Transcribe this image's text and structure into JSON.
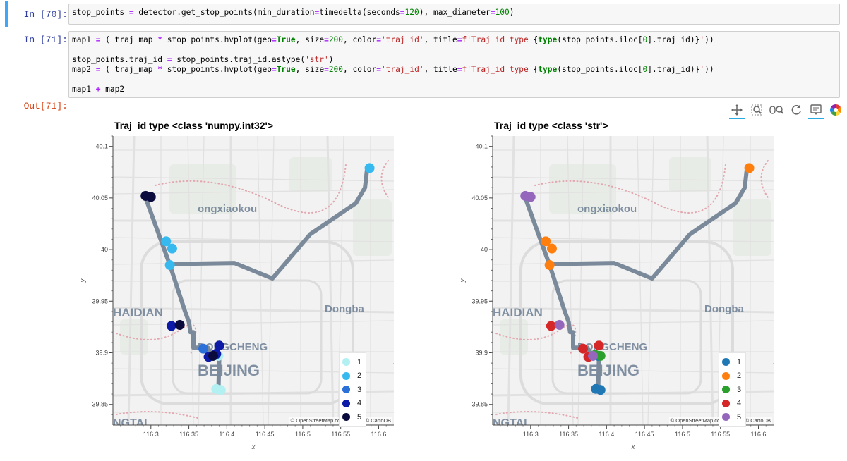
{
  "cells": [
    {
      "prompt": "In [70]:",
      "lines": [
        [
          [
            "stop_points ",
            "t"
          ],
          [
            "=",
            "op"
          ],
          [
            " detector.get_stop_points(min_duration",
            "t"
          ],
          [
            "=",
            "op"
          ],
          [
            "timedelta(seconds",
            "t"
          ],
          [
            "=",
            "op"
          ],
          [
            "120",
            "num"
          ],
          [
            "), max_diameter",
            "t"
          ],
          [
            "=",
            "op"
          ],
          [
            "100",
            "num"
          ],
          [
            ")",
            "t"
          ]
        ]
      ]
    },
    {
      "prompt": "In [71]:",
      "lines": [
        [
          [
            "map1 ",
            "t"
          ],
          [
            "=",
            "op"
          ],
          [
            " ( traj_map ",
            "t"
          ],
          [
            "*",
            "op"
          ],
          [
            " stop_points.hvplot(geo",
            "t"
          ],
          [
            "=",
            "op"
          ],
          [
            "True",
            "kw"
          ],
          [
            ", size",
            "t"
          ],
          [
            "=",
            "op"
          ],
          [
            "200",
            "num"
          ],
          [
            ", color",
            "t"
          ],
          [
            "=",
            "op"
          ],
          [
            "'traj_id'",
            "str"
          ],
          [
            ", title",
            "t"
          ],
          [
            "=",
            "op"
          ],
          [
            "f'Traj_id type ",
            "str"
          ],
          [
            "{",
            "t"
          ],
          [
            "type",
            "kw"
          ],
          [
            "(stop_points.iloc[",
            "t"
          ],
          [
            "0",
            "num"
          ],
          [
            "].traj_id)",
            "t"
          ],
          [
            "}",
            "t"
          ],
          [
            "'",
            "str"
          ],
          [
            "))",
            "t"
          ]
        ],
        [],
        [
          [
            "stop_points.traj_id ",
            "t"
          ],
          [
            "=",
            "op"
          ],
          [
            " stop_points.traj_id.astype(",
            "t"
          ],
          [
            "'str'",
            "str"
          ],
          [
            ")",
            "t"
          ]
        ],
        [
          [
            "map2 ",
            "t"
          ],
          [
            "=",
            "op"
          ],
          [
            " ( traj_map ",
            "t"
          ],
          [
            "*",
            "op"
          ],
          [
            " stop_points.hvplot(geo",
            "t"
          ],
          [
            "=",
            "op"
          ],
          [
            "True",
            "kw"
          ],
          [
            ", size",
            "t"
          ],
          [
            "=",
            "op"
          ],
          [
            "200",
            "num"
          ],
          [
            ", color",
            "t"
          ],
          [
            "=",
            "op"
          ],
          [
            "'traj_id'",
            "str"
          ],
          [
            ", title",
            "t"
          ],
          [
            "=",
            "op"
          ],
          [
            "f'Traj_id type ",
            "str"
          ],
          [
            "{",
            "t"
          ],
          [
            "type",
            "kw"
          ],
          [
            "(stop_points.iloc[",
            "t"
          ],
          [
            "0",
            "num"
          ],
          [
            "].traj_id)",
            "t"
          ],
          [
            "}",
            "t"
          ],
          [
            "'",
            "str"
          ],
          [
            "))",
            "t"
          ]
        ],
        [],
        [
          [
            "map1 ",
            "t"
          ],
          [
            "+",
            "op"
          ],
          [
            " map2",
            "t"
          ]
        ]
      ]
    }
  ],
  "output_prompt": "Out[71]:",
  "toolbar": [
    "pan-icon",
    "box-zoom-icon",
    "wheel-zoom-icon",
    "reset-icon",
    "hover-icon",
    "bokeh-logo-icon"
  ],
  "map_labels": {
    "north": "ongxiaokou",
    "west": "HAIDIAN",
    "east": "Dongba",
    "center": "DONGCHENG",
    "center2": "BEIJING",
    "south": "NGTAI",
    "edge": "TO"
  },
  "attribution": "© OpenStreetMap contributors, © CartoDB",
  "chart_data": [
    {
      "type": "scatter",
      "title": "Traj_id type <class 'numpy.int32'>",
      "xlabel": "x",
      "ylabel": "y",
      "xlim": [
        116.25,
        116.62
      ],
      "ylim": [
        39.83,
        40.11
      ],
      "xticks": [
        "116.3",
        "116.35",
        "116.4",
        "116.45",
        "116.5",
        "116.55",
        "116.6"
      ],
      "yticks": [
        "39.85",
        "39.9",
        "39.95",
        "40",
        "40.05",
        "40.1"
      ],
      "legend": "bottom-right",
      "colors": {
        "1": "#b3f0f2",
        "2": "#36b9ee",
        "3": "#2b6fd9",
        "4": "#0d1aa8",
        "5": "#0a0a3c"
      },
      "series": [
        {
          "name": "1",
          "points": [
            [
              116.386,
              39.865
            ],
            [
              116.392,
              39.864
            ],
            [
              116.389,
              39.897
            ]
          ]
        },
        {
          "name": "2",
          "points": [
            [
              116.588,
              40.079
            ],
            [
              116.32,
              40.008
            ],
            [
              116.328,
              40.001
            ],
            [
              116.325,
              39.985
            ]
          ]
        },
        {
          "name": "3",
          "points": [
            [
              116.385,
              39.898
            ],
            [
              116.369,
              39.904
            ]
          ]
        },
        {
          "name": "4",
          "points": [
            [
              116.327,
              39.926
            ],
            [
              116.376,
              39.896
            ],
            [
              116.386,
              39.899
            ],
            [
              116.39,
              39.907
            ]
          ]
        },
        {
          "name": "5",
          "points": [
            [
              116.293,
              40.052
            ],
            [
              116.3,
              40.051
            ],
            [
              116.338,
              39.927
            ],
            [
              116.382,
              39.897
            ]
          ]
        }
      ]
    },
    {
      "type": "scatter",
      "title": "Traj_id type <class 'str'>",
      "xlabel": "x",
      "ylabel": "y",
      "xlim": [
        116.25,
        116.62
      ],
      "ylim": [
        39.83,
        40.11
      ],
      "xticks": [
        "116.3",
        "116.35",
        "116.4",
        "116.45",
        "116.5",
        "116.55",
        "116.6"
      ],
      "yticks": [
        "39.85",
        "39.9",
        "39.95",
        "40",
        "40.05",
        "40.1"
      ],
      "legend": "bottom-right",
      "colors": {
        "1": "#1f77b4",
        "2": "#ff7f0e",
        "3": "#2ca02c",
        "4": "#d62728",
        "5": "#9467bd"
      },
      "series": [
        {
          "name": "1",
          "points": [
            [
              116.386,
              39.865
            ],
            [
              116.392,
              39.864
            ],
            [
              116.389,
              39.897
            ]
          ]
        },
        {
          "name": "2",
          "points": [
            [
              116.588,
              40.079
            ],
            [
              116.32,
              40.008
            ],
            [
              116.328,
              40.001
            ],
            [
              116.325,
              39.985
            ]
          ]
        },
        {
          "name": "3",
          "points": [
            [
              116.385,
              39.898
            ],
            [
              116.392,
              39.897
            ]
          ]
        },
        {
          "name": "4",
          "points": [
            [
              116.327,
              39.926
            ],
            [
              116.376,
              39.896
            ],
            [
              116.369,
              39.904
            ],
            [
              116.39,
              39.907
            ]
          ]
        },
        {
          "name": "5",
          "points": [
            [
              116.293,
              40.052
            ],
            [
              116.3,
              40.051
            ],
            [
              116.338,
              39.927
            ],
            [
              116.382,
              39.897
            ]
          ]
        }
      ]
    }
  ],
  "trajectory": [
    [
      116.293,
      40.05
    ],
    [
      116.325,
      39.985
    ],
    [
      116.345,
      39.94
    ],
    [
      116.35,
      39.93
    ],
    [
      116.352,
      39.92
    ],
    [
      116.356,
      39.92
    ],
    [
      116.356,
      39.905
    ],
    [
      116.375,
      39.905
    ],
    [
      116.378,
      39.9
    ],
    [
      116.385,
      39.9
    ],
    [
      116.39,
      39.895
    ],
    [
      116.389,
      39.865
    ]
  ],
  "trajectory2": [
    [
      116.325,
      39.986
    ],
    [
      116.41,
      39.987
    ],
    [
      116.46,
      39.972
    ],
    [
      116.51,
      40.015
    ],
    [
      116.57,
      40.045
    ],
    [
      116.582,
      40.06
    ],
    [
      116.585,
      40.08
    ]
  ]
}
